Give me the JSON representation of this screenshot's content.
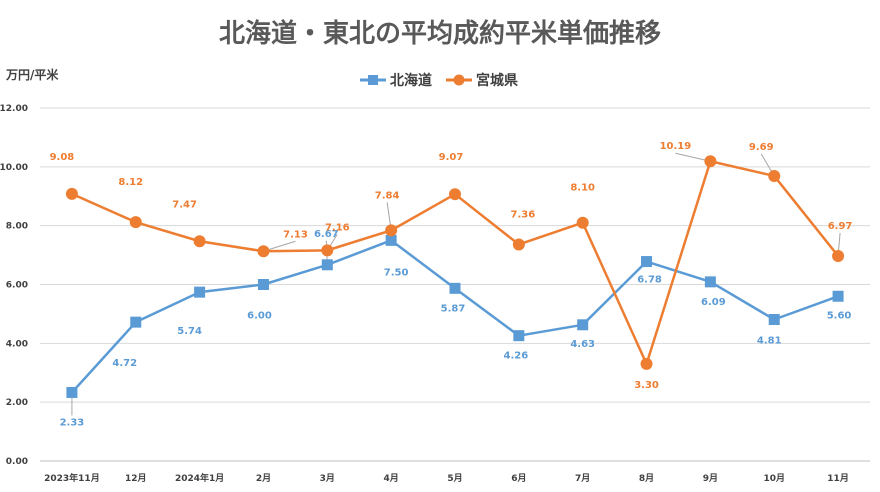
{
  "chart_data": {
    "type": "line",
    "title": "北海道・東北の平均成約平米単価推移",
    "ylabel": "万円/平米",
    "xlabel": "",
    "ylim": [
      0,
      12
    ],
    "yticks": [
      "0.00",
      "2.00",
      "4.00",
      "6.00",
      "8.00",
      "10.00",
      "12.00"
    ],
    "grid": true,
    "legend_position": "top",
    "categories": [
      "2023年11月",
      "12月",
      "2024年1月",
      "2月",
      "3月",
      "4月",
      "5月",
      "6月",
      "7月",
      "8月",
      "9月",
      "10月",
      "11月"
    ],
    "series": [
      {
        "name": "北海道",
        "color": "#5B9BD5",
        "marker": "square",
        "values": [
          2.33,
          4.72,
          5.74,
          6.0,
          6.67,
          7.5,
          5.87,
          4.26,
          4.63,
          6.78,
          6.09,
          4.81,
          5.6
        ],
        "labels": [
          "2.33",
          "4.72",
          "5.74",
          "6.00",
          "6.67",
          "7.50",
          "5.87",
          "4.26",
          "4.63",
          "6.78",
          "6.09",
          "4.81",
          "5.60"
        ]
      },
      {
        "name": "宮城県",
        "color": "#ED7D31",
        "marker": "circle",
        "values": [
          9.08,
          8.12,
          7.47,
          7.13,
          7.16,
          7.84,
          9.07,
          7.36,
          8.1,
          3.3,
          10.19,
          9.69,
          6.97
        ],
        "labels": [
          "9.08",
          "8.12",
          "7.47",
          "7.13",
          "7.16",
          "7.84",
          "9.07",
          "7.36",
          "8.10",
          "3.30",
          "10.19",
          "9.69",
          "6.97"
        ]
      }
    ]
  }
}
